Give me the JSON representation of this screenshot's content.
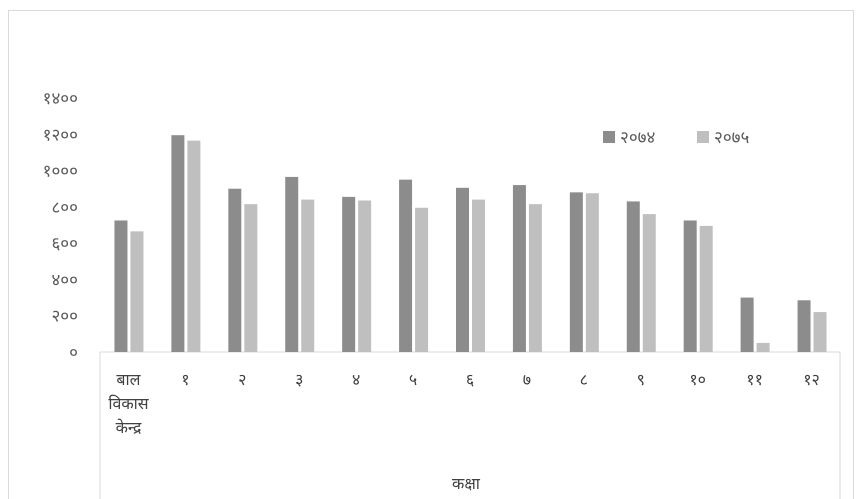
{
  "chart_data": {
    "type": "bar",
    "title": "",
    "xlabel": "कक्षा",
    "ylabel": "",
    "ylim": [
      0,
      1400
    ],
    "yticks": [
      {
        "value": 0,
        "label": "०"
      },
      {
        "value": 200,
        "label": "२००"
      },
      {
        "value": 400,
        "label": "४००"
      },
      {
        "value": 600,
        "label": "६००"
      },
      {
        "value": 800,
        "label": "८००"
      },
      {
        "value": 1000,
        "label": "१०००"
      },
      {
        "value": 1200,
        "label": "१२००"
      },
      {
        "value": 1400,
        "label": "१४००"
      }
    ],
    "categories": [
      [
        "बाल",
        "विकास",
        "केन्द्र"
      ],
      [
        "१"
      ],
      [
        "२"
      ],
      [
        "३"
      ],
      [
        "४"
      ],
      [
        "५"
      ],
      [
        "६"
      ],
      [
        "७"
      ],
      [
        "८"
      ],
      [
        "९"
      ],
      [
        "१०"
      ],
      [
        "११"
      ],
      [
        "१२"
      ]
    ],
    "series": [
      {
        "name": "२०७४",
        "color": "#8c8c8c",
        "values": [
          725,
          1195,
          900,
          965,
          855,
          950,
          905,
          920,
          880,
          830,
          725,
          300,
          285
        ]
      },
      {
        "name": "२०७५",
        "color": "#bfbfbf",
        "values": [
          665,
          1165,
          815,
          840,
          835,
          795,
          840,
          815,
          875,
          760,
          695,
          50,
          220
        ]
      }
    ],
    "grid": false,
    "legend_position": "top-right"
  }
}
